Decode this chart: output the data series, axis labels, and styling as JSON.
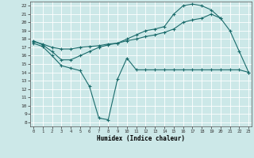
{
  "xlabel": "Humidex (Indice chaleur)",
  "bg_color": "#cce8e8",
  "line_color": "#1a6b6b",
  "grid_color": "#ffffff",
  "xlim": [
    0,
    23
  ],
  "ylim": [
    7.5,
    22.5
  ],
  "xticks": [
    0,
    1,
    2,
    3,
    4,
    5,
    6,
    7,
    8,
    9,
    10,
    11,
    12,
    13,
    14,
    15,
    16,
    17,
    18,
    19,
    20,
    21,
    22,
    23
  ],
  "yticks": [
    8,
    9,
    10,
    11,
    12,
    13,
    14,
    15,
    16,
    17,
    18,
    19,
    20,
    21,
    22
  ],
  "series": [
    {
      "x": [
        0,
        1,
        2,
        3,
        4,
        5,
        6,
        7,
        8,
        9,
        10,
        11,
        12,
        13,
        14,
        15,
        16,
        17,
        18,
        19,
        20,
        21,
        22,
        23
      ],
      "y": [
        17.5,
        17.1,
        16.0,
        14.8,
        14.5,
        14.2,
        12.3,
        8.5,
        8.3,
        13.2,
        15.7,
        14.3,
        14.3,
        14.3,
        14.3,
        14.3,
        14.3,
        14.3,
        14.3,
        14.3,
        14.3,
        14.3,
        14.3,
        14.0
      ]
    },
    {
      "x": [
        0,
        1,
        2,
        3,
        4,
        5,
        6,
        7,
        8,
        9,
        10,
        11,
        12,
        13,
        14,
        15,
        16,
        17,
        18,
        19,
        20
      ],
      "y": [
        17.7,
        17.4,
        17.0,
        16.8,
        16.8,
        17.0,
        17.1,
        17.2,
        17.4,
        17.5,
        17.8,
        18.0,
        18.3,
        18.5,
        18.8,
        19.2,
        20.0,
        20.3,
        20.5,
        21.0,
        20.5
      ]
    },
    {
      "x": [
        0,
        1,
        2,
        3,
        4,
        5,
        6,
        7,
        8,
        9,
        10,
        11,
        12,
        13,
        14,
        15,
        16,
        17,
        18,
        19,
        20,
        21,
        22,
        23
      ],
      "y": [
        17.8,
        17.3,
        16.5,
        15.5,
        15.5,
        16.0,
        16.5,
        17.0,
        17.3,
        17.5,
        18.0,
        18.5,
        19.0,
        19.2,
        19.5,
        21.0,
        22.0,
        22.2,
        22.0,
        21.5,
        20.5,
        19.0,
        16.5,
        14.0
      ]
    }
  ]
}
